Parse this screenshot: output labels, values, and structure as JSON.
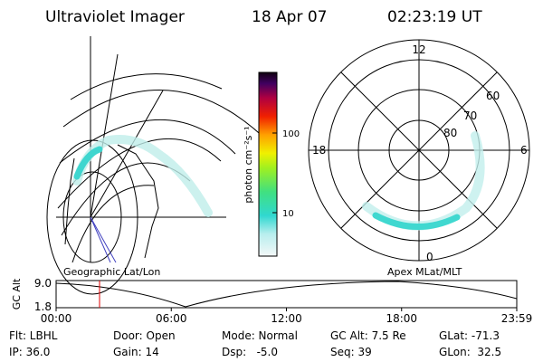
{
  "header": {
    "title": "Ultraviolet Imager",
    "date": "18 Apr 07",
    "time": "02:23:19 UT"
  },
  "colorbar": {
    "label": "photon cm⁻²s⁻¹",
    "ticks": [
      "100",
      "10"
    ]
  },
  "polar": {
    "mlt_labels": [
      "12",
      "6",
      "0",
      "18"
    ],
    "lat_labels": [
      "60",
      "70",
      "80"
    ]
  },
  "panels": {
    "left_title": "Geographic Lat/Lon",
    "right_title": "Apex MLat/MLT"
  },
  "timeline": {
    "ylabel": "GC Alt",
    "yticks": [
      "9.0",
      "1.8"
    ],
    "xticks": [
      "00:00",
      "06:00",
      "12:00",
      "18:00",
      "23:59"
    ]
  },
  "status": [
    [
      "Flt: LBHL",
      "Door: Open",
      "Mode: Normal",
      "GC Alt: 7.5 Re",
      "GLat: -71.3"
    ],
    [
      "IP: 36.0",
      "Gain: 14",
      "Dsp:   -5.0",
      "Seq: 39",
      "GLon:  32.5"
    ]
  ]
}
